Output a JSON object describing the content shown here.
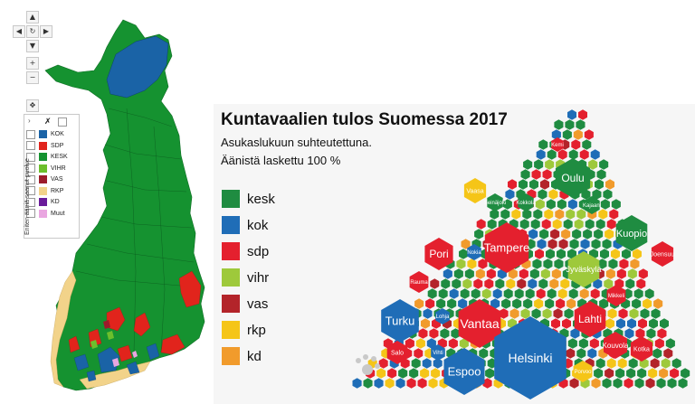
{
  "map_controls": {
    "up": "▲",
    "left": "◀",
    "reset": "↻",
    "right": "▶",
    "down": "▼",
    "zoom_in": "+",
    "zoom_out": "−",
    "pan": "✥",
    "collapse": "›",
    "clear": "✗"
  },
  "map_legend": {
    "vertical_label": "Eniten ääniä saanut puolue",
    "items": [
      {
        "label": "KOK",
        "color": "#1a63a6"
      },
      {
        "label": "SDP",
        "color": "#e1241c"
      },
      {
        "label": "KESK",
        "color": "#159230"
      },
      {
        "label": "VIHR",
        "color": "#6cbf2c"
      },
      {
        "label": "VAS",
        "color": "#9c1b2b"
      },
      {
        "label": "RKP",
        "color": "#f2d38a"
      },
      {
        "label": "KD",
        "color": "#6a1b9a"
      },
      {
        "label": "Muut",
        "color": "#e9a6e0"
      }
    ]
  },
  "infographic": {
    "title": "Kuntavaalien tulos Suomessa 2017",
    "subtitle": "Asukaslukuun suhteutettuna.",
    "subtitle2": "Äänistä laskettu 100 %",
    "legend": [
      {
        "label": "kesk",
        "color": "#1f8c41"
      },
      {
        "label": "kok",
        "color": "#1f6db7"
      },
      {
        "label": "sdp",
        "color": "#e4202e"
      },
      {
        "label": "vihr",
        "color": "#9ec93b"
      },
      {
        "label": "vas",
        "color": "#b3242a"
      },
      {
        "label": "rkp",
        "color": "#f5c518"
      },
      {
        "label": "kd",
        "color": "#f19b2c"
      }
    ],
    "cities": {
      "oulu": "Oulu",
      "kemi": "Kemi",
      "vaasa": "Vaasa",
      "seinajoki": "Seinäjoki",
      "kokkola": "Kokkola",
      "kajaani": "Kajaani",
      "kuopio": "Kuopio",
      "joensuu": "Joensuu",
      "pori": "Pori",
      "nokia": "Nokia",
      "tampere": "Tampere",
      "jyvaskyla": "Jyväskylä",
      "rauma": "Rauma",
      "mikkeli": "Mikkeli",
      "turku": "Turku",
      "kerava": "Kerava",
      "vantaa": "Vantaa",
      "lahti": "Lahti",
      "lohja": "Lohja",
      "salo": "Salo",
      "vihti": "Vihti",
      "espoo": "Espoo",
      "helsinki": "Helsinki",
      "kouvola": "Kouvola",
      "kotka": "Kotka",
      "porvoo": "Porvoo"
    }
  }
}
